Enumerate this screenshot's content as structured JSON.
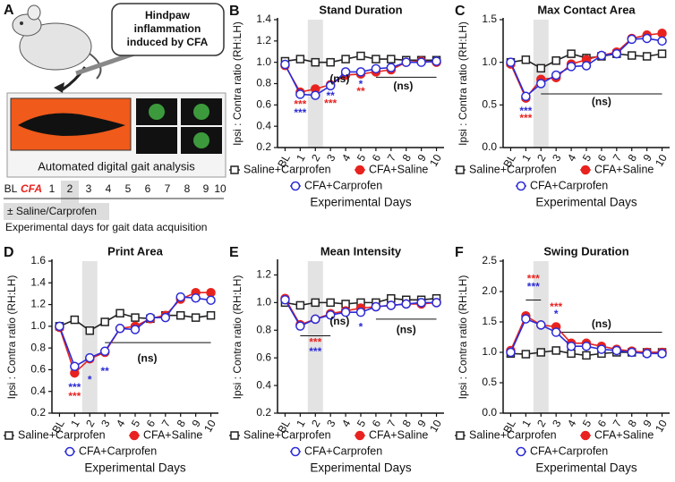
{
  "panel_a": {
    "panel": "A",
    "callout": [
      "Hindpaw",
      "inflammation",
      "induced by CFA"
    ],
    "caption": "Automated digital gait analysis",
    "timeline": [
      "BL",
      "CFA",
      "1",
      "2",
      "3",
      "4",
      "5",
      "6",
      "7",
      "8",
      "9",
      "10"
    ],
    "treatment": "± Saline/Carprofen",
    "note": "Experimental days for gait data acquisition"
  },
  "chart_data": [
    {
      "type": "line",
      "panel": "B",
      "title": "Stand Duration",
      "ylabel": "Ipsi : Contra ratio (RH:LH)",
      "xlabel": "Experimental Days",
      "categories": [
        "BL",
        "1",
        "2",
        "3",
        "4",
        "5",
        "6",
        "7",
        "8",
        "9",
        "10"
      ],
      "highlight": "2",
      "ylim": [
        0.2,
        1.4
      ],
      "yticks": [
        0.2,
        0.4,
        0.6,
        0.8,
        {
          "value": 1,
          "label": "1.0"
        },
        1.2,
        1.4
      ],
      "series": [
        {
          "name": "Saline+Carprofen",
          "color": "#222222",
          "marker": "square",
          "values": [
            1.01,
            1.03,
            1.0,
            1.0,
            1.03,
            1.06,
            1.03,
            1.03,
            1.02,
            1.02,
            1.02
          ]
        },
        {
          "name": "CFA+Saline",
          "color": "#e8231f",
          "marker": "filled-circle",
          "values": [
            0.97,
            0.72,
            0.75,
            0.79,
            0.88,
            0.89,
            0.91,
            0.93,
            1.0,
            1.01,
            1.0
          ]
        },
        {
          "name": "CFA+Carprofen",
          "color": "#2b2bd6",
          "marker": "circle",
          "values": [
            0.98,
            0.7,
            0.69,
            0.78,
            0.91,
            0.91,
            0.94,
            0.95,
            1.0,
            1.0,
            1.01
          ]
        }
      ],
      "annotations": [
        {
          "text": "***",
          "color": "#e8231f",
          "x": 1,
          "y": 0.6
        },
        {
          "text": "***",
          "color": "#2b2bd6",
          "x": 1,
          "y": 0.52
        },
        {
          "text": "**",
          "color": "#2b2bd6",
          "x": 3,
          "y": 0.68
        },
        {
          "text": "***",
          "color": "#e8231f",
          "x": 3,
          "y": 0.61
        },
        {
          "text": "(ns)",
          "color": "#111111",
          "x": 3.6,
          "y": 0.84
        },
        {
          "text": "*",
          "color": "#2b2bd6",
          "x": 5,
          "y": 0.79
        },
        {
          "text": "**",
          "color": "#e8231f",
          "x": 5,
          "y": 0.72
        },
        {
          "text": "(ns)",
          "color": "#111111",
          "x": 7.8,
          "y": 0.77
        }
      ],
      "brackets": [
        {
          "from": 6,
          "to": 10,
          "y": 0.86
        }
      ]
    },
    {
      "type": "line",
      "panel": "C",
      "title": "Max Contact Area",
      "ylabel": "Ipsi : Contra ratio (RH:LH)",
      "xlabel": "Experimental Days",
      "categories": [
        "BL",
        "1",
        "2",
        "3",
        "4",
        "5",
        "6",
        "7",
        "8",
        "9",
        "10"
      ],
      "highlight": "2",
      "ylim": [
        0,
        1.5
      ],
      "yticks": [
        {
          "value": 0,
          "label": "0.0"
        },
        0.5,
        {
          "value": 1,
          "label": "1.0"
        },
        1.5
      ],
      "series": [
        {
          "name": "Saline+Carprofen",
          "color": "#222222",
          "marker": "square",
          "values": [
            1.0,
            1.03,
            0.93,
            1.02,
            1.1,
            1.05,
            1.07,
            1.1,
            1.08,
            1.07,
            1.1
          ]
        },
        {
          "name": "CFA+Saline",
          "color": "#e8231f",
          "marker": "filled-circle",
          "values": [
            0.98,
            0.58,
            0.8,
            0.82,
            0.98,
            1.03,
            1.08,
            1.12,
            1.28,
            1.32,
            1.34
          ]
        },
        {
          "name": "CFA+Carprofen",
          "color": "#2b2bd6",
          "marker": "circle",
          "values": [
            1.0,
            0.6,
            0.75,
            0.85,
            0.95,
            0.96,
            1.08,
            1.1,
            1.27,
            1.28,
            1.25
          ]
        }
      ],
      "annotations": [
        {
          "text": "***",
          "color": "#2b2bd6",
          "x": 1,
          "y": 0.42
        },
        {
          "text": "***",
          "color": "#e8231f",
          "x": 1,
          "y": 0.34
        },
        {
          "text": "(ns)",
          "color": "#111111",
          "x": 6,
          "y": 0.53
        }
      ],
      "brackets": [
        {
          "from": 2,
          "to": 10,
          "y": 0.63
        }
      ]
    },
    {
      "type": "line",
      "panel": "D",
      "title": "Print Area",
      "ylabel": "Ipsi : Contra ratio (RH:LH)",
      "xlabel": "Experimental Days",
      "categories": [
        "BL",
        "1",
        "2",
        "3",
        "4",
        "5",
        "6",
        "7",
        "8",
        "9",
        "10"
      ],
      "highlight": "2",
      "ylim": [
        0.2,
        1.6
      ],
      "yticks": [
        0.2,
        0.4,
        0.6,
        0.8,
        {
          "value": 1,
          "label": "1.0"
        },
        1.2,
        1.4,
        1.6
      ],
      "series": [
        {
          "name": "Saline+Carprofen",
          "color": "#222222",
          "marker": "square",
          "values": [
            1.0,
            1.06,
            0.96,
            1.04,
            1.12,
            1.08,
            1.07,
            1.1,
            1.1,
            1.08,
            1.1
          ]
        },
        {
          "name": "CFA+Saline",
          "color": "#e8231f",
          "marker": "filled-circle",
          "values": [
            0.99,
            0.57,
            0.7,
            0.76,
            0.98,
            1.0,
            1.07,
            1.1,
            1.25,
            1.31,
            1.31
          ]
        },
        {
          "name": "CFA+Carprofen",
          "color": "#2b2bd6",
          "marker": "circle",
          "values": [
            1.0,
            0.63,
            0.71,
            0.77,
            0.98,
            0.97,
            1.08,
            1.08,
            1.27,
            1.26,
            1.24
          ]
        }
      ],
      "annotations": [
        {
          "text": "***",
          "color": "#2b2bd6",
          "x": 1,
          "y": 0.43
        },
        {
          "text": "***",
          "color": "#e8231f",
          "x": 1,
          "y": 0.35
        },
        {
          "text": "*",
          "color": "#2b2bd6",
          "x": 2,
          "y": 0.5
        },
        {
          "text": "**",
          "color": "#2b2bd6",
          "x": 3,
          "y": 0.58
        },
        {
          "text": "(ns)",
          "color": "#111111",
          "x": 5.8,
          "y": 0.7
        }
      ],
      "brackets": [
        {
          "from": 3,
          "to": 10,
          "y": 0.85
        }
      ]
    },
    {
      "type": "line",
      "panel": "E",
      "title": "Mean Intensity",
      "ylabel": "Ipsi : Contra ratio (RH:LH)",
      "xlabel": "Experimental Days",
      "categories": [
        "BL",
        "1",
        "2",
        "3",
        "4",
        "5",
        "6",
        "7",
        "8",
        "9",
        "10"
      ],
      "highlight": "2",
      "ylim": [
        0.2,
        1.3
      ],
      "yticks": [
        0.2,
        0.4,
        0.6,
        0.8,
        {
          "value": 1,
          "label": "1.0"
        },
        1.2
      ],
      "series": [
        {
          "name": "Saline+Carprofen",
          "color": "#222222",
          "marker": "square",
          "values": [
            1.0,
            0.98,
            1.0,
            1.0,
            0.99,
            1.0,
            1.0,
            1.03,
            1.02,
            1.02,
            1.03
          ]
        },
        {
          "name": "CFA+Saline",
          "color": "#e8231f",
          "marker": "filled-circle",
          "values": [
            1.03,
            0.84,
            0.88,
            0.92,
            0.94,
            0.96,
            0.97,
            0.98,
            0.99,
            0.99,
            1.0
          ]
        },
        {
          "name": "CFA+Carprofen",
          "color": "#2b2bd6",
          "marker": "circle",
          "values": [
            1.02,
            0.83,
            0.88,
            0.91,
            0.93,
            0.93,
            0.97,
            0.98,
            0.99,
            1.0,
            1.0
          ]
        }
      ],
      "annotations": [
        {
          "text": "***",
          "color": "#e8231f",
          "x": 2,
          "y": 0.71
        },
        {
          "text": "***",
          "color": "#2b2bd6",
          "x": 2,
          "y": 0.64
        },
        {
          "text": "(ns)",
          "color": "#111111",
          "x": 3.6,
          "y": 0.86
        },
        {
          "text": "*",
          "color": "#2b2bd6",
          "x": 5,
          "y": 0.82
        },
        {
          "text": "(ns)",
          "color": "#111111",
          "x": 8,
          "y": 0.8
        }
      ],
      "brackets": [
        {
          "from": 1,
          "to": 3,
          "y": 0.76
        },
        {
          "from": 6,
          "to": 10,
          "y": 0.88
        }
      ]
    },
    {
      "type": "line",
      "panel": "F",
      "title": "Swing Duration",
      "ylabel": "Ipsi : Contra ratio (RH:LH)",
      "xlabel": "Experimental Days",
      "categories": [
        "BL",
        "1",
        "2",
        "3",
        "4",
        "5",
        "6",
        "7",
        "8",
        "9",
        "10"
      ],
      "highlight": "2",
      "ylim": [
        0,
        2.5
      ],
      "yticks": [
        {
          "value": 0,
          "label": "0.0"
        },
        0.5,
        {
          "value": 1,
          "label": "1.0"
        },
        1.5,
        {
          "value": 2,
          "label": "2.0"
        },
        2.5
      ],
      "series": [
        {
          "name": "Saline+Carprofen",
          "color": "#222222",
          "marker": "square",
          "values": [
            0.98,
            0.97,
            1.0,
            1.03,
            0.98,
            0.95,
            0.98,
            1.0,
            1.0,
            1.0,
            1.0
          ]
        },
        {
          "name": "CFA+Saline",
          "color": "#e8231f",
          "marker": "filled-circle",
          "values": [
            1.03,
            1.6,
            1.45,
            1.42,
            1.15,
            1.15,
            1.1,
            1.05,
            1.02,
            1.0,
            1.0
          ]
        },
        {
          "name": "CFA+Carprofen",
          "color": "#2b2bd6",
          "marker": "circle",
          "values": [
            1.0,
            1.55,
            1.45,
            1.33,
            1.1,
            1.1,
            1.05,
            1.03,
            1.0,
            0.98,
            0.98
          ]
        }
      ],
      "annotations": [
        {
          "text": "***",
          "color": "#e8231f",
          "x": 1.5,
          "y": 2.2
        },
        {
          "text": "***",
          "color": "#2b2bd6",
          "x": 1.5,
          "y": 2.07
        },
        {
          "text": "***",
          "color": "#e8231f",
          "x": 3,
          "y": 1.74
        },
        {
          "text": "*",
          "color": "#2b2bd6",
          "x": 3,
          "y": 1.62
        },
        {
          "text": "(ns)",
          "color": "#111111",
          "x": 6,
          "y": 1.46
        }
      ],
      "brackets": [
        {
          "from": 1,
          "to": 2,
          "y": 1.86
        },
        {
          "from": 3,
          "to": 10,
          "y": 1.33
        }
      ]
    }
  ]
}
